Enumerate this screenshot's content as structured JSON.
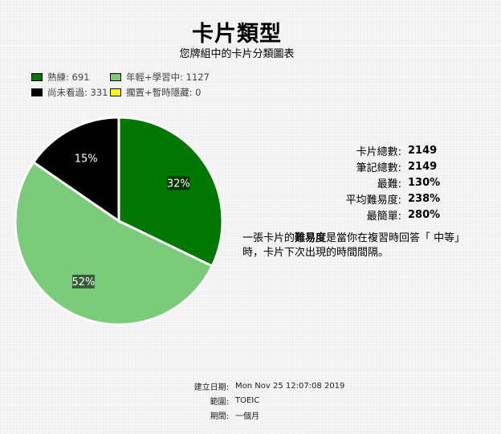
{
  "header": {
    "title": "卡片類型",
    "subtitle": "您牌組中的卡片分類圖表"
  },
  "legend": [
    {
      "label": "熟練: 691",
      "color": "#007700"
    },
    {
      "label": "年輕+學習中: 1127",
      "color": "#7acc7a"
    },
    {
      "label": "尚未看過: 331",
      "color": "#000000"
    },
    {
      "label": "擱置+暫時隱藏: 0",
      "color": "#ffff00"
    }
  ],
  "chart_data": {
    "type": "pie",
    "slices": [
      {
        "name": "熟練",
        "value": 691,
        "color": "#007700",
        "percent_label": "32%"
      },
      {
        "name": "年輕+學習中",
        "value": 1127,
        "color": "#7acc7a",
        "percent_label": "52%"
      },
      {
        "name": "尚未看過",
        "value": 331,
        "color": "#000000",
        "percent_label": "15%"
      },
      {
        "name": "擱置+暫時隱藏",
        "value": 0,
        "color": "#ffff00",
        "percent_label": ""
      }
    ],
    "legend_position": "top-left"
  },
  "stats": [
    {
      "label": "卡片總數:",
      "value": "2149"
    },
    {
      "label": "筆記總數:",
      "value": "2149"
    },
    {
      "label": "最難:",
      "value": "130%"
    },
    {
      "label": "平均難易度:",
      "value": "238%"
    },
    {
      "label": "最簡單:",
      "value": "280%"
    }
  ],
  "ease_note": {
    "before": "一張卡片的",
    "bold": "難易度",
    "after": "是當你在複習時回答「 中等」時，卡片下次出現的時間間隔。"
  },
  "footer": [
    {
      "label": "建立日期:",
      "value": "Mon Nov 25 12:07:08 2019"
    },
    {
      "label": "範圍:",
      "value": "TOEIC"
    },
    {
      "label": "期間:",
      "value": "一個月"
    }
  ]
}
